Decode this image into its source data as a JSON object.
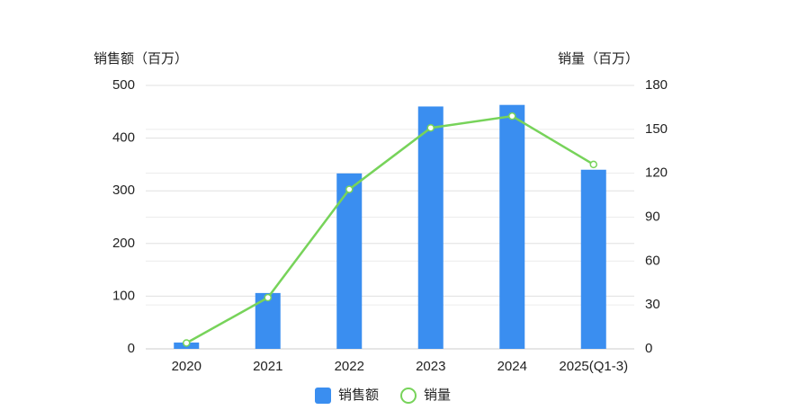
{
  "chart_data": {
    "type": "combo",
    "y_label": "销售额（百万）",
    "y2_label": "销量（百万）",
    "categories": [
      "2020",
      "2021",
      "2022",
      "2023",
      "2024",
      "2025(Q1-3)"
    ],
    "series": [
      {
        "name": "销售额",
        "type": "bar",
        "color": "#3a8ef0",
        "values": [
          12,
          106,
          333,
          460,
          463,
          340
        ]
      },
      {
        "name": "销量",
        "type": "line",
        "axis": "y2",
        "color": "#77d35a",
        "values": [
          4,
          35,
          109,
          151,
          159,
          126
        ]
      }
    ],
    "ylim": [
      0,
      500
    ],
    "yticks": [
      0,
      100,
      200,
      300,
      400,
      500
    ],
    "y2lim": [
      0,
      180
    ],
    "y2ticks": [
      0,
      30,
      60,
      90,
      120,
      150,
      180
    ],
    "grid": true
  }
}
